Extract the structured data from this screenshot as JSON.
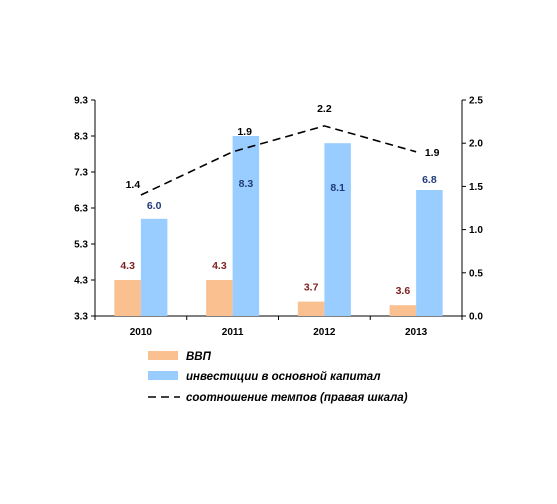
{
  "chart_data": {
    "type": "bar",
    "title": "",
    "xlabel": "",
    "ylabel": "",
    "categories": [
      "2010",
      "2011",
      "2012",
      "2013"
    ],
    "series": [
      {
        "name": "ВВП",
        "type": "bar",
        "axis": "left",
        "values": [
          4.3,
          4.3,
          3.7,
          3.6
        ],
        "color": "#FAC090",
        "label_color": "#7F1F1F"
      },
      {
        "name": "инвестиции в основной капитал",
        "type": "bar",
        "axis": "left",
        "values": [
          6.0,
          8.3,
          8.1,
          6.8
        ],
        "color": "#99CCFF",
        "label_color": "#1F3A7A"
      },
      {
        "name": "соотношение темпов (правая шкала)",
        "type": "line",
        "axis": "right",
        "line_style": "dashed",
        "values": [
          1.4,
          1.9,
          2.2,
          1.9
        ],
        "color": "#000000",
        "label_color": "#000000"
      }
    ],
    "y_left": {
      "min": 3.3,
      "max": 9.3,
      "ticks": [
        "3.3",
        "4.3",
        "5.3",
        "6.3",
        "7.3",
        "8.3",
        "9.3"
      ]
    },
    "y_right": {
      "min": 0.0,
      "max": 2.5,
      "ticks": [
        "0.0",
        "0.5",
        "1.0",
        "1.5",
        "2.0",
        "2.5"
      ]
    },
    "data_labels": true,
    "grid": false,
    "legend": "bottom"
  }
}
